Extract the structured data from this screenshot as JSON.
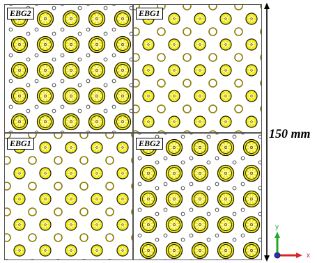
{
  "quadrants": [
    {
      "id": "top-left",
      "label": "EBG2",
      "pattern": "EBG2"
    },
    {
      "id": "top-right",
      "label": "EBG1",
      "pattern": "EBG1"
    },
    {
      "id": "bottom-left",
      "label": "EBG1",
      "pattern": "EBG1"
    },
    {
      "id": "bottom-right",
      "label": "EBG2",
      "pattern": "EBG2"
    }
  ],
  "dimension": {
    "label": "150 mm"
  },
  "axes": {
    "y_label": "y",
    "x_label": "x"
  },
  "colors": {
    "patch_fill": "#f2ea1a",
    "patch_stroke": "#1a1a00",
    "ring_stroke": "#8a7a00",
    "frame": "#555555",
    "axis_y": "#22aa22",
    "axis_x": "#dd2222",
    "axis_z": "#2233cc"
  }
}
